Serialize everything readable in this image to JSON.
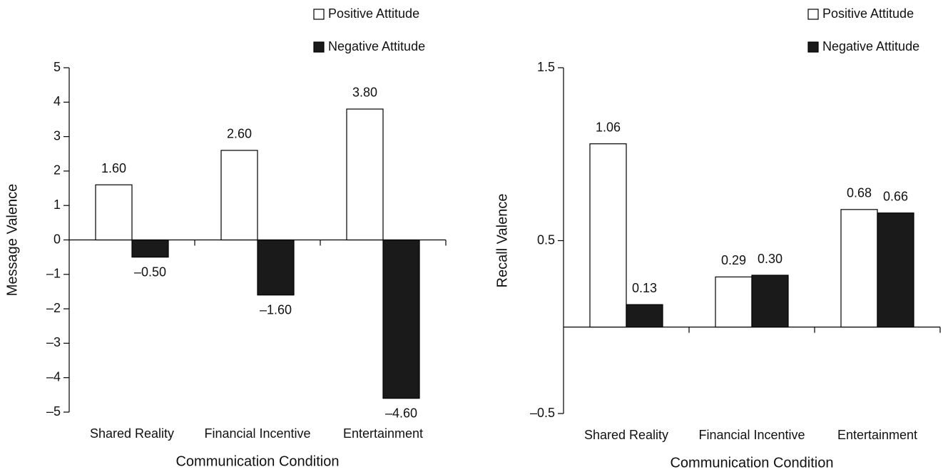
{
  "chart_data": [
    {
      "type": "bar",
      "xlabel": "Communication Condition",
      "ylabel": "Message Valence",
      "categories": [
        "Shared Reality",
        "Financial Incentive",
        "Entertainment"
      ],
      "series": [
        {
          "name": "Positive Attitude",
          "color": "#ffffff",
          "values": [
            1.6,
            2.6,
            3.8
          ],
          "value_labels": [
            "1.60",
            "2.60",
            "3.80"
          ]
        },
        {
          "name": "Negative Attitude",
          "color": "#1a1a1a",
          "values": [
            -0.5,
            -1.6,
            -4.6
          ],
          "value_labels": [
            "–0.50",
            "–1.60",
            "–4.60"
          ]
        }
      ],
      "ylim": [
        -5,
        5
      ],
      "yticks": [
        {
          "value": -5,
          "label": "–5"
        },
        {
          "value": -4,
          "label": "–4"
        },
        {
          "value": -3,
          "label": "–3"
        },
        {
          "value": -2,
          "label": "–2"
        },
        {
          "value": -1,
          "label": "–1"
        },
        0,
        1,
        2,
        3,
        4,
        5
      ],
      "legend": "upper right"
    },
    {
      "type": "bar",
      "xlabel": "Communication Condition",
      "ylabel": "Recall Valence",
      "categories": [
        "Shared Reality",
        "Financial Incentive",
        "Entertainment"
      ],
      "series": [
        {
          "name": "Positive Attitude",
          "color": "#ffffff",
          "values": [
            1.06,
            0.29,
            0.68
          ],
          "value_labels": [
            "1.06",
            "0.29",
            "0.68"
          ]
        },
        {
          "name": "Negative Attitude",
          "color": "#1a1a1a",
          "values": [
            0.13,
            0.3,
            0.66
          ],
          "value_labels": [
            "0.13",
            "0.30",
            "0.66"
          ]
        }
      ],
      "ylim": [
        -0.5,
        1.5
      ],
      "yticks": [
        {
          "value": -0.5,
          "label": "–0.5"
        },
        0.5,
        1.5
      ],
      "legend": "upper right"
    }
  ]
}
